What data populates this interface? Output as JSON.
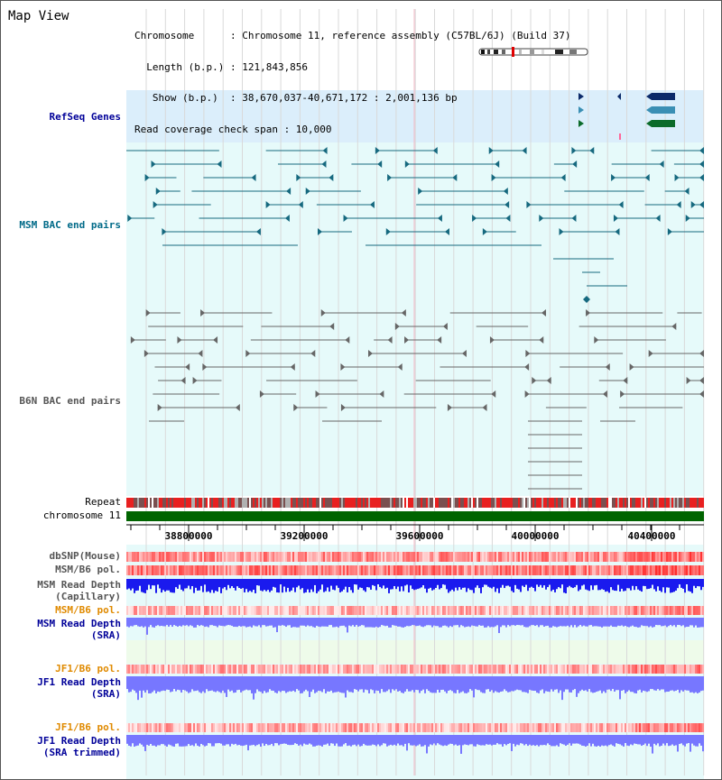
{
  "title": "Map View",
  "info_lines": [
    "Chromosome      : Chromosome 11, reference assembly (C57BL/6J) (Build 37)",
    "  Length (b.p.) : 121,843,856",
    "   Show (b.p.)  : 38,670,037-40,671,172 : 2,001,136 bp",
    "Read coverage check span : 10,000"
  ],
  "tracks": {
    "refseq": "RefSeq Genes",
    "msm_bac": "MSM BAC end pairs",
    "b6n_bac": "B6N BAC end pairs",
    "repeat": "Repeat",
    "chromosome": "chromosome 11",
    "dbsnp": "dbSNP(Mouse)",
    "msm_b6_pol": "MSM/B6 pol.",
    "msm_depth_cap_1": "MSM Read Depth",
    "msm_depth_cap_2": "(Capillary)",
    "msm_b6_pol_sra": "MSM/B6 pol.",
    "msm_depth_sra_1": "MSM Read Depth",
    "msm_depth_sra_2": "(SRA)",
    "jf1_b6_pol": "JF1/B6 pol.",
    "jf1_depth_sra_1": "JF1 Read Depth",
    "jf1_depth_sra_2": "(SRA)",
    "jf1_b6_pol_trim": "JF1/B6 pol.",
    "jf1_depth_trim_1": "JF1 Read Depth",
    "jf1_depth_trim_2": "(SRA trimmed)"
  },
  "axis": {
    "ticks": [
      "38800000",
      "39200000",
      "39600000",
      "40000000",
      "40400000"
    ]
  },
  "colors": {
    "refseq_bg": "#dbeefb",
    "track_bg": "#e6fafa",
    "msm_pair": "#16697f",
    "b6n_pair": "#666666",
    "chromosome": "#006400",
    "depth_dark": "#1a1aee",
    "depth_light": "#7777ff",
    "polymorphism": "#ff3333",
    "gene_navy": "#0b2a6a",
    "gene_teal": "#3a8fb4",
    "gene_green": "#0b6b2a"
  }
}
